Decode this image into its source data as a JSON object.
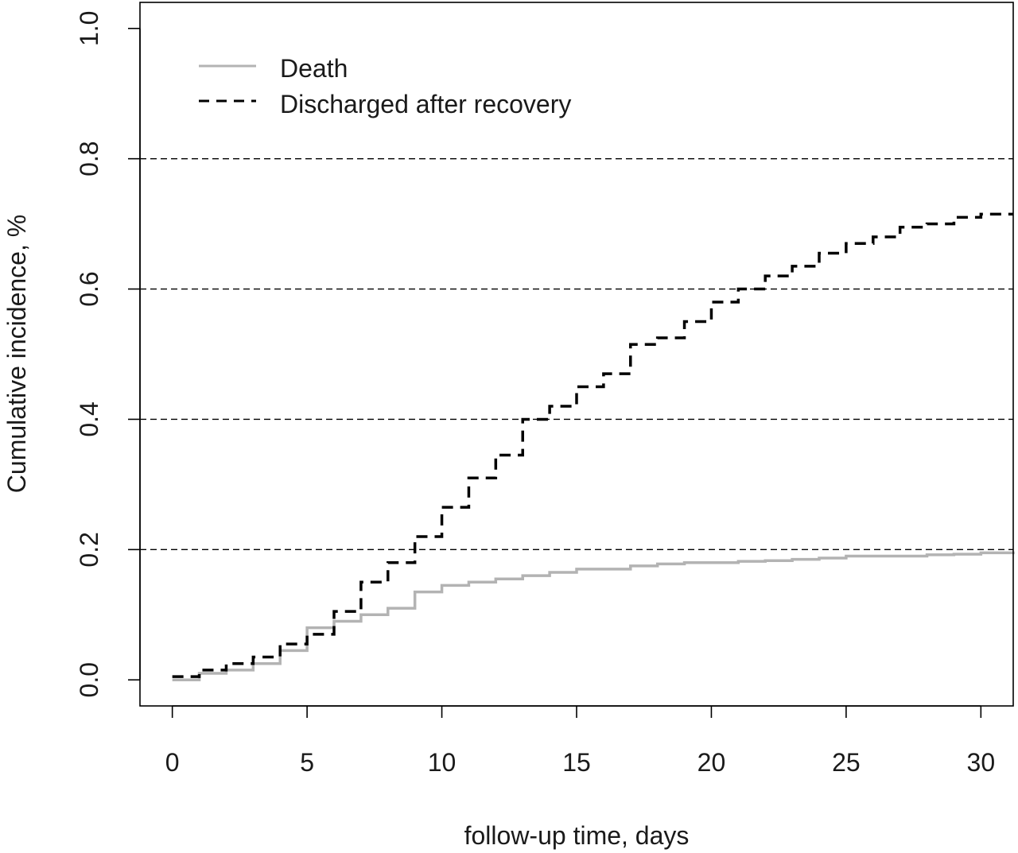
{
  "chart_data": {
    "type": "line",
    "step": true,
    "xlabel": "follow-up time, days",
    "ylabel": "Cumulative incidence, %",
    "xlim": [
      -1.2,
      31.2
    ],
    "ylim": [
      -0.04,
      1.04
    ],
    "xticks": [
      0,
      5,
      10,
      15,
      20,
      25,
      30
    ],
    "xtick_labels": [
      "0",
      "5",
      "10",
      "15",
      "20",
      "25",
      "30"
    ],
    "yticks": [
      0.0,
      0.2,
      0.4,
      0.6,
      0.8,
      1.0
    ],
    "ytick_labels": [
      "0.0",
      "0.2",
      "0.4",
      "0.6",
      "0.8",
      "1.0"
    ],
    "reference_lines_y": [
      0.2,
      0.4,
      0.6,
      0.8
    ],
    "legend_position": "top-left",
    "series": [
      {
        "name": "Death",
        "color": "#b3b3b3",
        "style": "solid",
        "x": [
          0,
          1,
          2,
          3,
          4,
          5,
          6,
          7,
          8,
          9,
          10,
          11,
          12,
          13,
          14,
          15,
          16,
          17,
          18,
          19,
          20,
          21,
          22,
          23,
          24,
          25,
          26,
          27,
          28,
          29,
          30,
          31.2
        ],
        "y": [
          0.0,
          0.01,
          0.015,
          0.025,
          0.045,
          0.08,
          0.09,
          0.1,
          0.11,
          0.135,
          0.145,
          0.15,
          0.155,
          0.16,
          0.165,
          0.17,
          0.17,
          0.175,
          0.178,
          0.18,
          0.18,
          0.182,
          0.183,
          0.185,
          0.187,
          0.19,
          0.19,
          0.19,
          0.192,
          0.193,
          0.195,
          0.197
        ]
      },
      {
        "name": "Discharged after recovery",
        "color": "#000000",
        "style": "dashed",
        "x": [
          0,
          1,
          2,
          3,
          4,
          5,
          6,
          7,
          8,
          9,
          10,
          11,
          12,
          13,
          14,
          15,
          16,
          17,
          18,
          19,
          20,
          21,
          22,
          23,
          24,
          25,
          26,
          27,
          28,
          29,
          30,
          31.2
        ],
        "y": [
          0.005,
          0.015,
          0.025,
          0.035,
          0.055,
          0.07,
          0.105,
          0.15,
          0.18,
          0.22,
          0.265,
          0.31,
          0.345,
          0.4,
          0.42,
          0.45,
          0.47,
          0.515,
          0.525,
          0.55,
          0.58,
          0.6,
          0.62,
          0.635,
          0.655,
          0.67,
          0.68,
          0.695,
          0.7,
          0.71,
          0.715,
          0.715
        ]
      }
    ]
  }
}
